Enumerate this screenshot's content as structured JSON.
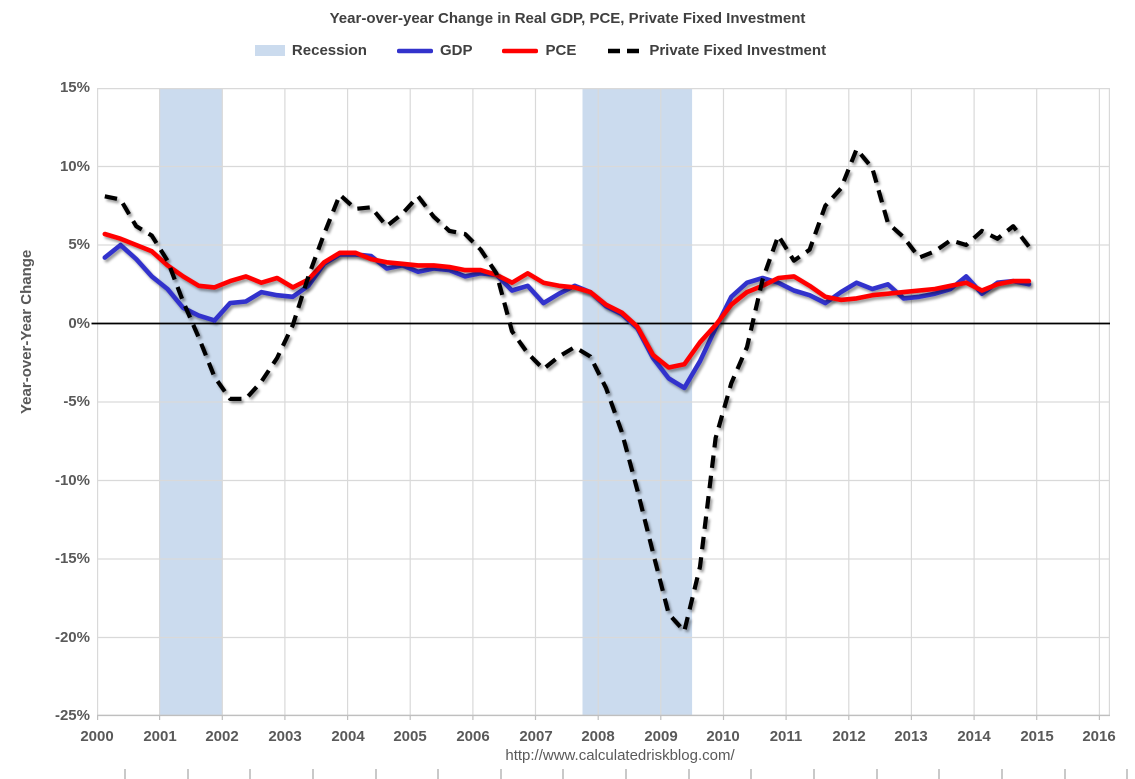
{
  "title": "Year-over-year Change in Real GDP, PCE, Private Fixed Investment",
  "legend": {
    "items": [
      {
        "label": "Recession",
        "type": "box",
        "color": "#cbdbee"
      },
      {
        "label": "GDP",
        "type": "line",
        "color": "#3333cc"
      },
      {
        "label": "PCE",
        "type": "line",
        "color": "#ff0000"
      },
      {
        "label": "Private Fixed Investment",
        "type": "dashed",
        "color": "#000000"
      }
    ]
  },
  "y_axis": {
    "title": "Year-over-Year Change",
    "ticks": [
      {
        "label": "15%",
        "value": 15
      },
      {
        "label": "10%",
        "value": 10
      },
      {
        "label": "5%",
        "value": 5
      },
      {
        "label": "0%",
        "value": 0
      },
      {
        "label": "-5%",
        "value": -5
      },
      {
        "label": "-10%",
        "value": -10
      },
      {
        "label": "-15%",
        "value": -15
      },
      {
        "label": "-20%",
        "value": -20
      },
      {
        "label": "-25%",
        "value": -25
      }
    ]
  },
  "x_axis": {
    "ticks": [
      {
        "label": "2000",
        "value": 2000
      },
      {
        "label": "2001",
        "value": 2001
      },
      {
        "label": "2002",
        "value": 2002
      },
      {
        "label": "2003",
        "value": 2003
      },
      {
        "label": "2004",
        "value": 2004
      },
      {
        "label": "2005",
        "value": 2005
      },
      {
        "label": "2006",
        "value": 2006
      },
      {
        "label": "2007",
        "value": 2007
      },
      {
        "label": "2008",
        "value": 2008
      },
      {
        "label": "2009",
        "value": 2009
      },
      {
        "label": "2010",
        "value": 2010
      },
      {
        "label": "2011",
        "value": 2011
      },
      {
        "label": "2012",
        "value": 2012
      },
      {
        "label": "2013",
        "value": 2013
      },
      {
        "label": "2014",
        "value": 2014
      },
      {
        "label": "2015",
        "value": 2015
      },
      {
        "label": "2016",
        "value": 2016
      }
    ]
  },
  "footer": {
    "url": "http://www.calculatedriskblog.com/"
  },
  "colors": {
    "grid": "#d9d9d9",
    "axis_line": "#bfbfbf",
    "zero_line": "#000000",
    "recession_band": "#cbdbee",
    "gdp": "#3333cc",
    "pce": "#ff0000",
    "pfi": "#000000",
    "text": "#595959",
    "title_text": "#404040"
  },
  "chart_data": {
    "type": "line",
    "title": "Year-over-year Change in Real GDP, PCE, Private Fixed Investment",
    "xlabel": "",
    "ylabel": "Year-over-Year Change",
    "ylim": [
      -25,
      15
    ],
    "xlim": [
      2000,
      2016.17
    ],
    "y_tick_step_pct": 5,
    "grid": true,
    "legend_position": "top",
    "x_note": "quarterly data plotted at quarter midpoints, year + (q-0.5)*0.25",
    "quarters": [
      "2000Q1",
      "2000Q2",
      "2000Q3",
      "2000Q4",
      "2001Q1",
      "2001Q2",
      "2001Q3",
      "2001Q4",
      "2002Q1",
      "2002Q2",
      "2002Q3",
      "2002Q4",
      "2003Q1",
      "2003Q2",
      "2003Q3",
      "2003Q4",
      "2004Q1",
      "2004Q2",
      "2004Q3",
      "2004Q4",
      "2005Q1",
      "2005Q2",
      "2005Q3",
      "2005Q4",
      "2006Q1",
      "2006Q2",
      "2006Q3",
      "2006Q4",
      "2007Q1",
      "2007Q2",
      "2007Q3",
      "2007Q4",
      "2008Q1",
      "2008Q2",
      "2008Q3",
      "2008Q4",
      "2009Q1",
      "2009Q2",
      "2009Q3",
      "2009Q4",
      "2010Q1",
      "2010Q2",
      "2010Q3",
      "2010Q4",
      "2011Q1",
      "2011Q2",
      "2011Q3",
      "2011Q4",
      "2012Q1",
      "2012Q2",
      "2012Q3",
      "2012Q4",
      "2013Q1",
      "2013Q2",
      "2013Q3",
      "2013Q4",
      "2014Q1",
      "2014Q2",
      "2014Q3",
      "2014Q4"
    ],
    "series": [
      {
        "name": "GDP",
        "color": "#3333cc",
        "style": "solid",
        "values": [
          4.2,
          5.0,
          4.1,
          3.0,
          2.2,
          1.0,
          0.5,
          0.2,
          1.3,
          1.4,
          2.0,
          1.8,
          1.7,
          2.4,
          3.8,
          4.4,
          4.4,
          4.3,
          3.5,
          3.7,
          3.3,
          3.5,
          3.4,
          3.0,
          3.2,
          3.1,
          2.1,
          2.4,
          1.3,
          1.9,
          2.4,
          2.0,
          1.1,
          0.6,
          -0.3,
          -2.2,
          -3.5,
          -4.1,
          -2.4,
          -0.3,
          1.7,
          2.6,
          2.9,
          2.6,
          2.1,
          1.8,
          1.3,
          2.0,
          2.6,
          2.2,
          2.5,
          1.6,
          1.7,
          1.9,
          2.2,
          3.0,
          1.9,
          2.6,
          2.7,
          2.5
        ]
      },
      {
        "name": "PCE",
        "color": "#ff0000",
        "style": "solid",
        "values": [
          5.7,
          5.4,
          5.0,
          4.6,
          3.7,
          3.0,
          2.4,
          2.3,
          2.7,
          3.0,
          2.6,
          2.9,
          2.3,
          2.8,
          3.9,
          4.5,
          4.5,
          4.1,
          3.9,
          3.8,
          3.7,
          3.7,
          3.6,
          3.4,
          3.4,
          3.1,
          2.6,
          3.2,
          2.6,
          2.4,
          2.3,
          2.0,
          1.2,
          0.7,
          -0.2,
          -2.0,
          -2.8,
          -2.6,
          -1.2,
          -0.1,
          1.2,
          2.0,
          2.4,
          2.9,
          3.0,
          2.4,
          1.7,
          1.5,
          1.6,
          1.8,
          1.9,
          2.0,
          2.1,
          2.2,
          2.4,
          2.6,
          2.1,
          2.5,
          2.7,
          2.7
        ]
      },
      {
        "name": "Private Fixed Investment",
        "color": "#000000",
        "style": "dashed",
        "values": [
          8.1,
          7.9,
          6.2,
          5.6,
          4.0,
          1.4,
          -0.9,
          -3.4,
          -4.8,
          -4.8,
          -3.7,
          -2.2,
          -0.1,
          3.0,
          5.7,
          8.2,
          7.3,
          7.4,
          6.2,
          7.0,
          8.1,
          6.8,
          5.9,
          5.7,
          4.7,
          3.2,
          -0.5,
          -1.9,
          -2.9,
          -2.1,
          -1.5,
          -2.1,
          -4.1,
          -6.9,
          -10.6,
          -14.6,
          -18.5,
          -19.6,
          -15.5,
          -7.3,
          -3.8,
          -1.5,
          2.8,
          5.6,
          4.0,
          4.7,
          7.5,
          8.6,
          11.1,
          9.9,
          6.4,
          5.5,
          4.2,
          4.6,
          5.3,
          5.0,
          5.9,
          5.4,
          6.2,
          4.9
        ]
      }
    ],
    "recessions": [
      {
        "start": 2001.0,
        "end": 2002.0
      },
      {
        "start": 2007.75,
        "end": 2009.5
      }
    ]
  }
}
